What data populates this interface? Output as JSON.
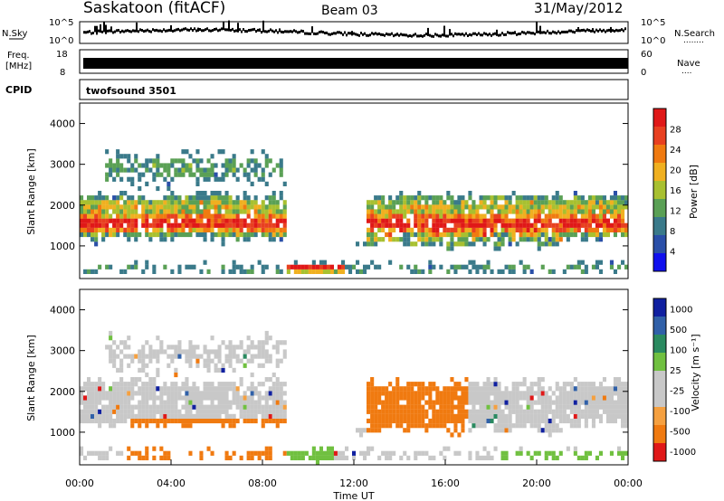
{
  "header": {
    "station": "Saskatoon (fitACF)",
    "beam": "Beam 03",
    "date": "31/May/2012"
  },
  "nsky_panel": {
    "left_label": "N.Sky",
    "right_label": "N.Search",
    "right_dots": "........",
    "ticks_left": [
      "10^5",
      "10^0"
    ],
    "ticks_right": [
      "10^5",
      "10^0"
    ]
  },
  "freq_panel": {
    "left_label_1": "Freq.",
    "left_label_2": "[MHz]",
    "right_label": "Nave",
    "right_dots": "....",
    "ticks_left": [
      "18",
      "8"
    ],
    "ticks_right": [
      "60",
      "0"
    ]
  },
  "cpid_panel": {
    "label": "CPID",
    "value": "twofsound 3501"
  },
  "colors": {
    "power_scale": [
      "#1010ee",
      "#2a4fa8",
      "#3a7a8a",
      "#5aa055",
      "#a8c030",
      "#f0b020",
      "#f07a10",
      "#e84020",
      "#e01818"
    ],
    "velocity_scale": [
      "#e01818",
      "#f07a10",
      "#f5a040",
      "#c8c8c8",
      "#c8c8c8",
      "#70c040",
      "#2a8a60",
      "#3060a8",
      "#1020a0"
    ]
  },
  "chart_data": [
    {
      "type": "heatmap",
      "name": "power",
      "ylabel": "Slant Range [km]",
      "yticks": [
        "1000",
        "2000",
        "3000",
        "4000"
      ],
      "ylim": [
        200,
        4500
      ],
      "xlim": [
        0,
        24
      ],
      "colorbar_label": "Power [dB]",
      "colorbar_ticks": [
        "4",
        "8",
        "12",
        "16",
        "20",
        "24",
        "28"
      ],
      "colorbar_range": [
        0,
        30
      ]
    },
    {
      "type": "heatmap",
      "name": "velocity",
      "ylabel": "Slant Range [km]",
      "yticks": [
        "1000",
        "2000",
        "3000",
        "4000"
      ],
      "ylim": [
        200,
        4500
      ],
      "xlim": [
        0,
        24
      ],
      "xticks": [
        "00:00",
        "04:00",
        "08:00",
        "12:00",
        "16:00",
        "20:00",
        "00:00"
      ],
      "xlabel": "Time UT",
      "colorbar_label": "Velocity [m s⁻¹]",
      "colorbar_ticks": [
        "1000",
        "500",
        "100",
        "25",
        "-25",
        "-100",
        "-500",
        "-1000"
      ]
    }
  ]
}
